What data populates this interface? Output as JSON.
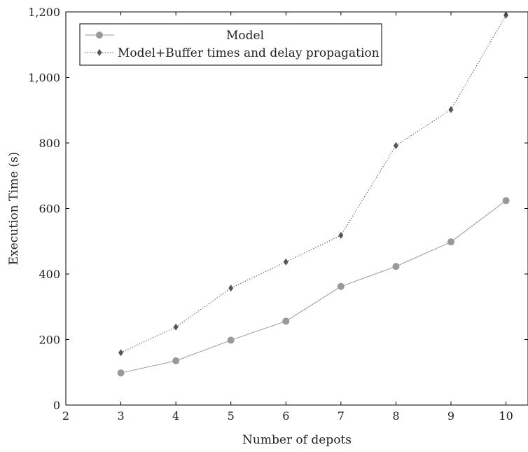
{
  "chart_data": {
    "type": "line",
    "title": "",
    "xlabel": "Number of depots",
    "ylabel": "Execution Time (s)",
    "xlim": [
      2,
      10.4
    ],
    "ylim": [
      0,
      1200
    ],
    "x_ticks": [
      2,
      3,
      4,
      5,
      6,
      7,
      8,
      9,
      10
    ],
    "x_tick_labels": [
      "2",
      "3",
      "4",
      "5",
      "6",
      "7",
      "8",
      "9",
      "10"
    ],
    "y_ticks": [
      0,
      200,
      400,
      600,
      800,
      1000,
      1200
    ],
    "y_tick_labels": [
      "0",
      "200",
      "400",
      "600",
      "800",
      "1,000",
      "1,200"
    ],
    "grid": false,
    "legend_position": "top-left",
    "x": [
      3,
      4,
      5,
      6,
      7,
      8,
      9,
      10
    ],
    "series": [
      {
        "name": "Model",
        "values": [
          98,
          135,
          198,
          256,
          362,
          423,
          498,
          624
        ],
        "color": "#999999",
        "line_style": "solid",
        "marker": "circle"
      },
      {
        "name": "Model+Buffer times and delay propagation",
        "values": [
          160,
          238,
          357,
          437,
          518,
          792,
          902,
          1190
        ],
        "color": "#555555",
        "line_style": "dotted",
        "marker": "diamond"
      }
    ]
  }
}
